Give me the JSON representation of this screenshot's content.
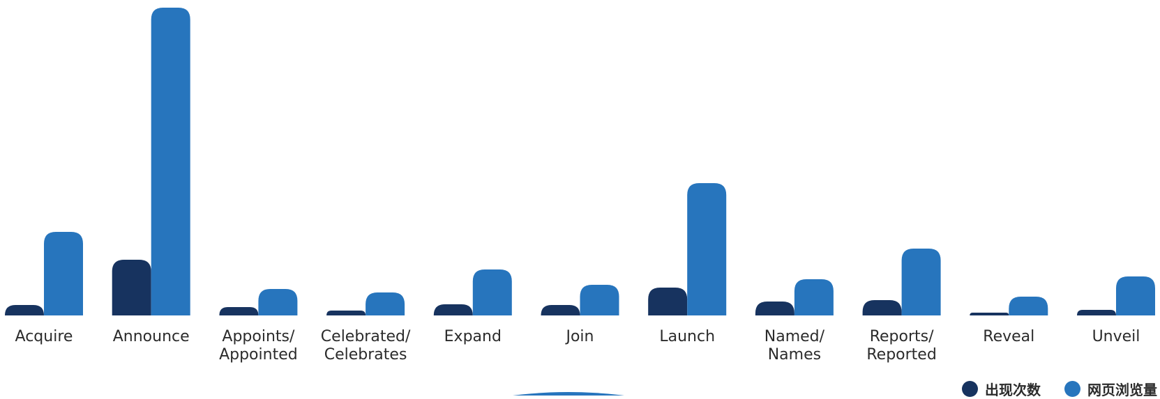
{
  "chart_data": {
    "type": "bar",
    "categories": [
      [
        "Acquire"
      ],
      [
        "Announce"
      ],
      [
        "Appoints/",
        "Appointed"
      ],
      [
        "Celebrated/",
        "Celebrates"
      ],
      [
        "Expand"
      ],
      [
        "Join"
      ],
      [
        "Launch"
      ],
      [
        "Named/",
        "Names"
      ],
      [
        "Reports/",
        "Reported"
      ],
      [
        "Reveal"
      ],
      [
        "Unveil"
      ]
    ],
    "series": [
      {
        "name": "出现次数",
        "color": "#17335f",
        "values": [
          15,
          80,
          12,
          7,
          16,
          15,
          40,
          20,
          22,
          4,
          8
        ]
      },
      {
        "name": "网页浏览量",
        "color": "#2775bd",
        "values": [
          120,
          442,
          38,
          33,
          66,
          44,
          190,
          52,
          96,
          27,
          56
        ]
      }
    ],
    "ylim": [
      0,
      442
    ],
    "grid": false,
    "legend_position": "bottom-right"
  }
}
